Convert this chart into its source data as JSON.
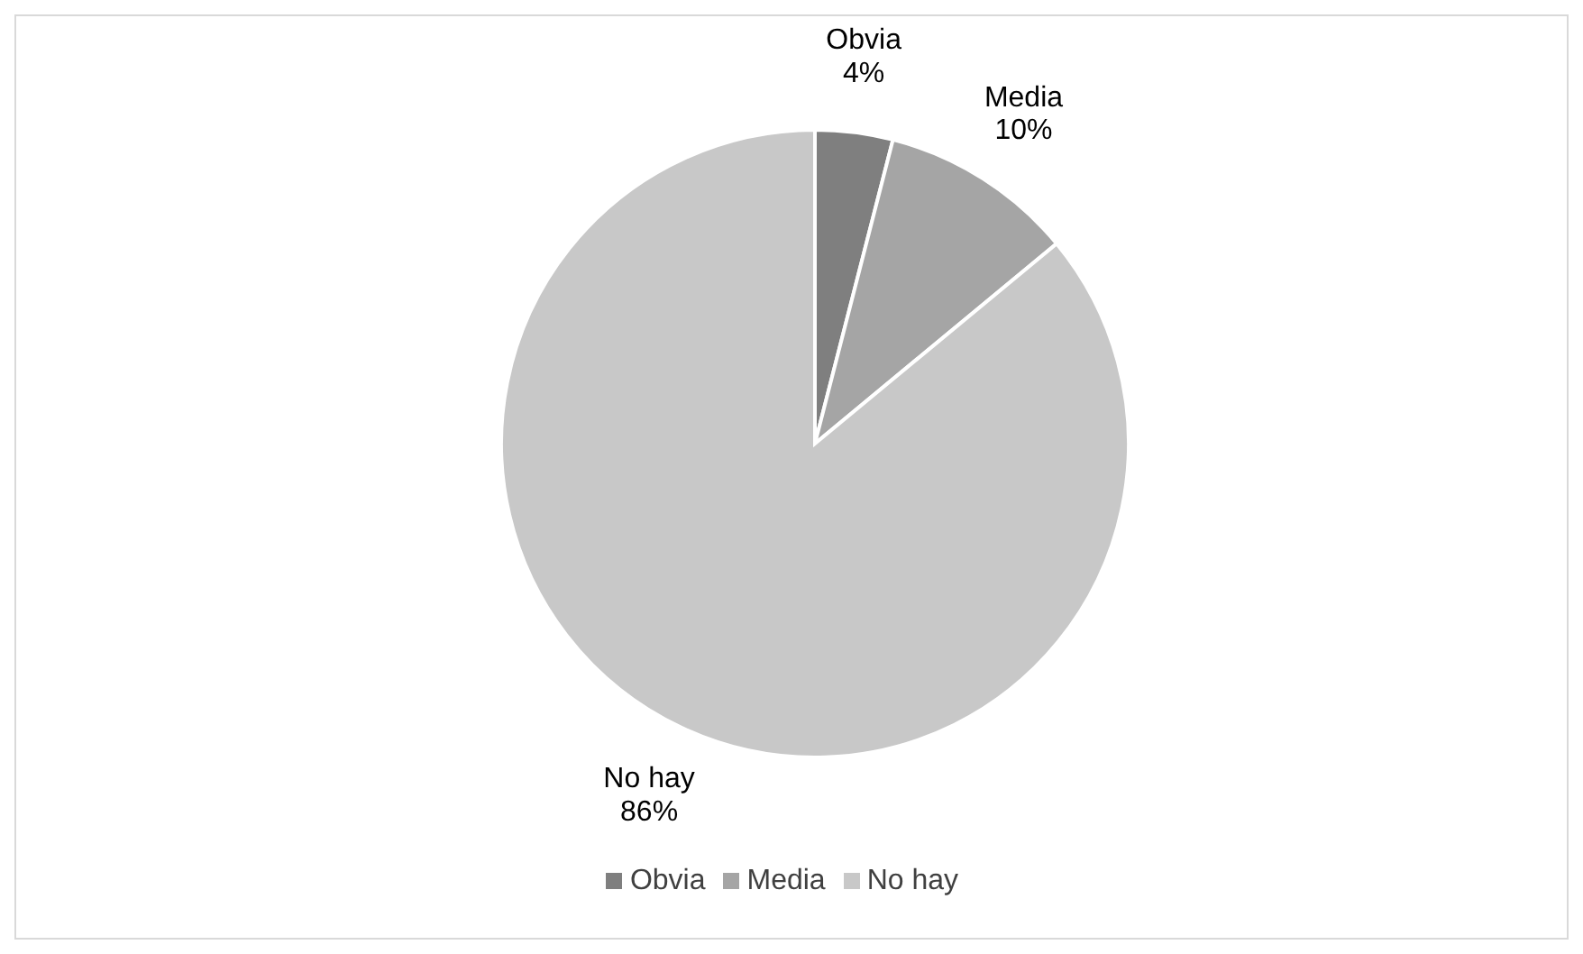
{
  "chart_data": {
    "type": "pie",
    "categories": [
      "Obvia",
      "Media",
      "No hay"
    ],
    "values": [
      4,
      10,
      86
    ],
    "colors": [
      "#7f7f7f",
      "#a5a5a5",
      "#c8c8c8"
    ],
    "value_labels": [
      "4%",
      "10%",
      "86%"
    ],
    "legend": "bottom"
  }
}
